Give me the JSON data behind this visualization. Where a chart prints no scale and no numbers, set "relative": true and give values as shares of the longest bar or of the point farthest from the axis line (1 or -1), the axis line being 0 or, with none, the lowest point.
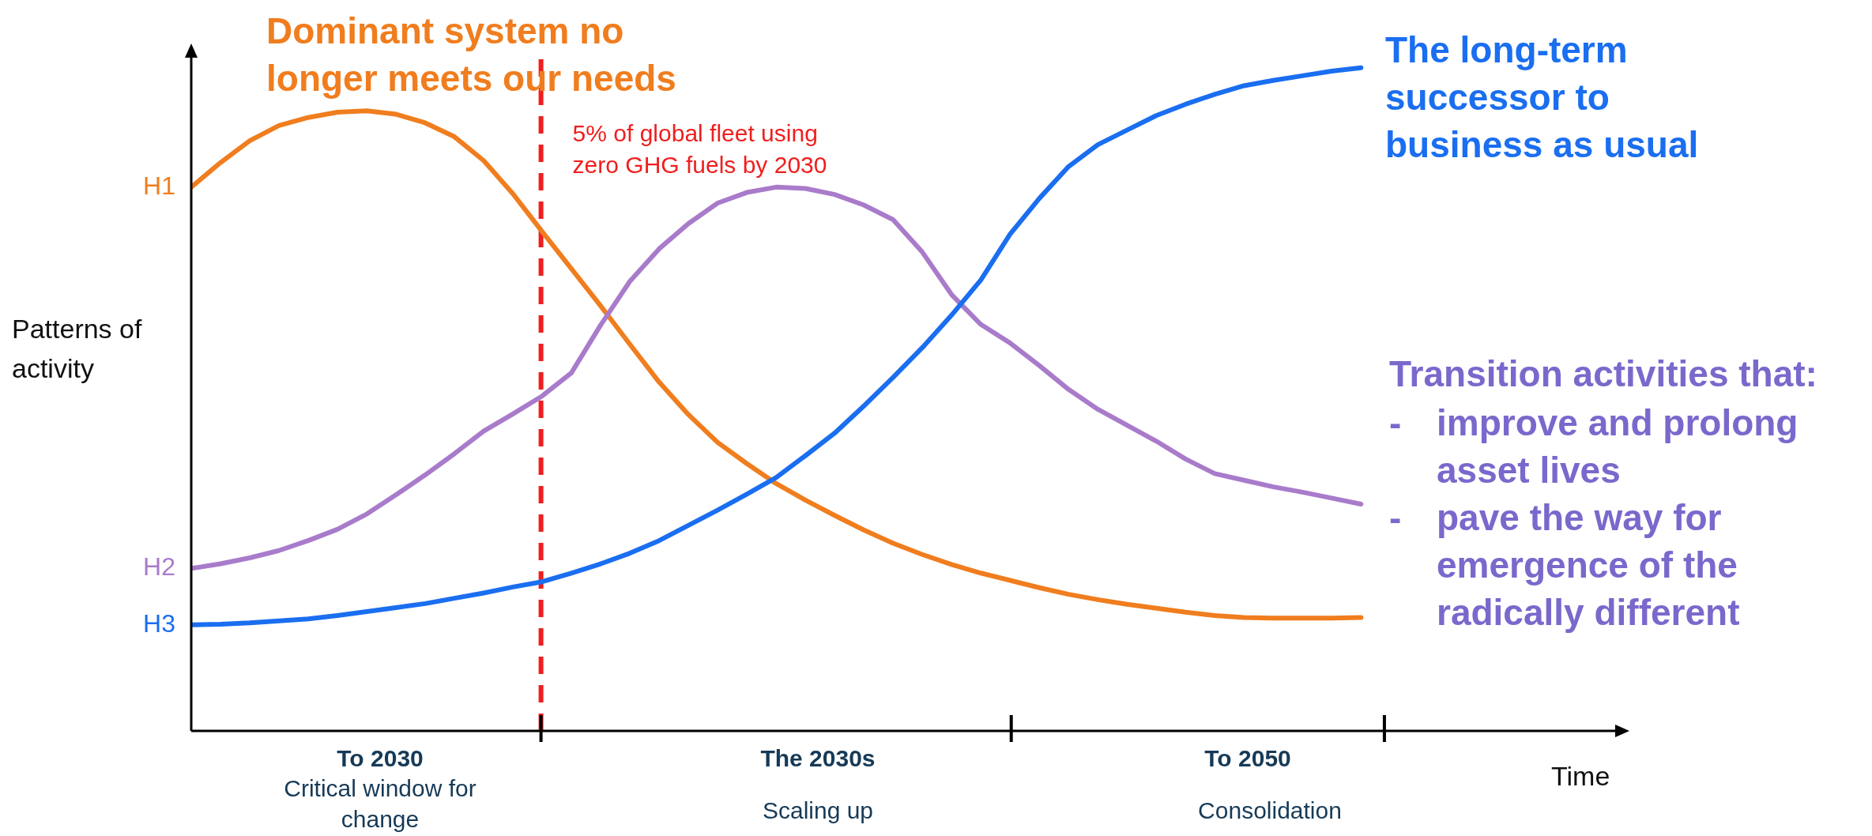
{
  "chart_data": {
    "type": "line",
    "relative": true,
    "ylabel": "Patterns of activity",
    "marker": "none",
    "line_style": "solid",
    "categories": [
      null,
      null,
      null,
      null,
      null,
      null,
      null,
      null,
      null,
      null,
      null,
      null,
      null,
      null,
      null,
      null,
      null,
      null,
      null,
      null,
      null,
      null,
      null,
      null,
      null,
      null,
      null,
      null,
      null,
      null,
      null,
      null,
      null,
      null,
      null,
      null,
      null,
      null,
      null,
      null,
      null
    ],
    "series": [
      {
        "name": "H1",
        "color": "#f07d1e",
        "values": [
          0.82,
          0.857,
          0.89,
          0.913,
          0.925,
          0.933,
          0.935,
          0.93,
          0.917,
          0.896,
          0.86,
          0.81,
          0.753,
          0.697,
          0.641,
          0.583,
          0.526,
          0.477,
          0.435,
          0.403,
          0.373,
          0.348,
          0.325,
          0.303,
          0.283,
          0.266,
          0.251,
          0.238,
          0.227,
          0.216,
          0.206,
          0.198,
          0.191,
          0.185,
          0.179,
          0.174,
          0.171,
          0.17,
          0.17,
          0.17,
          0.171
        ]
      },
      {
        "name": "H2",
        "color": "#a97bcb",
        "values": [
          0.245,
          0.252,
          0.261,
          0.272,
          0.287,
          0.304,
          0.327,
          0.356,
          0.386,
          0.418,
          0.452,
          0.478,
          0.505,
          0.54,
          0.612,
          0.678,
          0.727,
          0.765,
          0.796,
          0.812,
          0.82,
          0.818,
          0.809,
          0.793,
          0.771,
          0.722,
          0.658,
          0.613,
          0.585,
          0.551,
          0.515,
          0.485,
          0.461,
          0.437,
          0.41,
          0.388,
          0.378,
          0.368,
          0.36,
          0.351,
          0.342
        ]
      },
      {
        "name": "H3",
        "color": "#1a6ef0",
        "values": [
          0.16,
          0.161,
          0.163,
          0.166,
          0.169,
          0.174,
          0.18,
          0.186,
          0.192,
          0.2,
          0.208,
          0.217,
          0.225,
          0.238,
          0.252,
          0.268,
          0.287,
          0.31,
          0.333,
          0.357,
          0.382,
          0.415,
          0.449,
          0.49,
          0.533,
          0.578,
          0.627,
          0.68,
          0.749,
          0.803,
          0.851,
          0.884,
          0.906,
          0.928,
          0.945,
          0.96,
          0.973,
          0.981,
          0.988,
          0.995,
          1
        ]
      }
    ],
    "ref_lines": [
      {
        "axis": "x",
        "label": "5% of global fleet using zero GHG fuels by 2030",
        "color": "#f01e1e",
        "line_style": "dashed"
      }
    ],
    "annotations": [
      "Dominant system no longer meets our needs",
      "The long-term successor to business as usual",
      "Transition activities that:",
      "- improve and prolong asset lives",
      "- pave the way for emergence of the radically different",
      "To 2030",
      "Critical window for change",
      "The 2030s",
      "Scaling up",
      "To 2050",
      "Consolidation",
      "Time"
    ]
  }
}
